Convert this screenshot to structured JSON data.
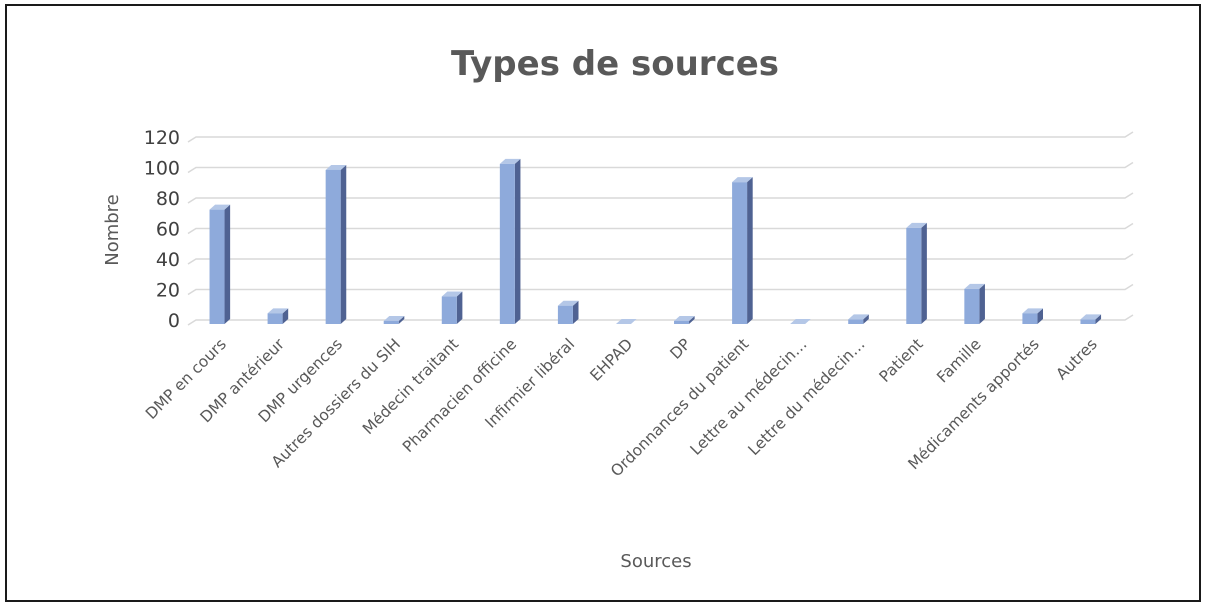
{
  "chart_data": {
    "type": "bar",
    "title": "Types de sources",
    "xlabel": "Sources",
    "ylabel": "Nombre",
    "ylim": [
      0,
      120
    ],
    "yticks": [
      0,
      20,
      40,
      60,
      80,
      100,
      120
    ],
    "categories": [
      "DMP en cours",
      "DMP antérieur",
      "DMP urgences",
      "Autres dossiers du SIH",
      "Médecin traitant",
      "Pharmacien officine",
      "Infirmier libéral",
      "EHPAD",
      "DP",
      "Ordonnances du patient",
      "Lettre au médecin…",
      "Lettre du médecin…",
      "Patient",
      "Famille",
      "Médicaments apportés",
      "Autres"
    ],
    "values": [
      75,
      7,
      101,
      2,
      18,
      105,
      12,
      0,
      2,
      93,
      0,
      3,
      63,
      23,
      7,
      3
    ],
    "grid": true,
    "legend": "none",
    "colors": {
      "bar_front": "#8eaadb",
      "bar_side": "#4f6292",
      "bar_top": "#b4c7e7",
      "grid": "#d9d9d9"
    }
  }
}
